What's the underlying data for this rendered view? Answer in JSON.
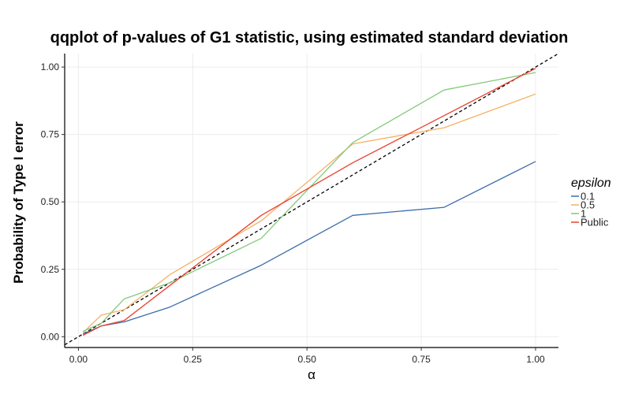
{
  "chart_data": {
    "type": "line",
    "title": "qqplot of p-values of G1 statistic, using estimated standard deviation",
    "xlabel": "α",
    "ylabel": "Probability of Type I error",
    "xlim": [
      -0.03,
      1.05
    ],
    "ylim": [
      -0.04,
      1.05
    ],
    "x_ticks": [
      0.0,
      0.25,
      0.5,
      0.75,
      1.0
    ],
    "x_tick_labels": [
      "0.00",
      "0.25",
      "0.50",
      "0.75",
      "1.00"
    ],
    "y_ticks": [
      0.0,
      0.25,
      0.5,
      0.75,
      1.0
    ],
    "y_tick_labels": [
      "0.00",
      "0.25",
      "0.50",
      "0.75",
      "1.00"
    ],
    "grid": true,
    "legend_title": "epsilon",
    "legend_position": "right",
    "reference_line": {
      "type": "identity",
      "style": "dashed",
      "color": "#000000"
    },
    "series": [
      {
        "name": "0.1",
        "color": "#3c6dab",
        "points": [
          [
            0.01,
            0.01
          ],
          [
            0.05,
            0.04
          ],
          [
            0.1,
            0.055
          ],
          [
            0.2,
            0.11
          ],
          [
            0.4,
            0.265
          ],
          [
            0.6,
            0.45
          ],
          [
            0.8,
            0.48
          ],
          [
            1.0,
            0.65
          ]
        ]
      },
      {
        "name": "0.5",
        "color": "#f5b062",
        "points": [
          [
            0.01,
            0.015
          ],
          [
            0.05,
            0.08
          ],
          [
            0.1,
            0.1
          ],
          [
            0.2,
            0.23
          ],
          [
            0.4,
            0.43
          ],
          [
            0.6,
            0.715
          ],
          [
            0.8,
            0.775
          ],
          [
            1.0,
            0.9
          ]
        ]
      },
      {
        "name": "1",
        "color": "#84c97a",
        "points": [
          [
            0.01,
            0.02
          ],
          [
            0.05,
            0.05
          ],
          [
            0.1,
            0.14
          ],
          [
            0.2,
            0.2
          ],
          [
            0.4,
            0.365
          ],
          [
            0.6,
            0.72
          ],
          [
            0.8,
            0.915
          ],
          [
            1.0,
            0.98
          ]
        ]
      },
      {
        "name": "Public",
        "color": "#e8402c",
        "points": [
          [
            0.01,
            0.005
          ],
          [
            0.05,
            0.04
          ],
          [
            0.1,
            0.06
          ],
          [
            0.2,
            0.19
          ],
          [
            0.4,
            0.45
          ],
          [
            0.6,
            0.645
          ],
          [
            0.8,
            0.82
          ],
          [
            1.0,
            0.995
          ]
        ]
      }
    ]
  }
}
